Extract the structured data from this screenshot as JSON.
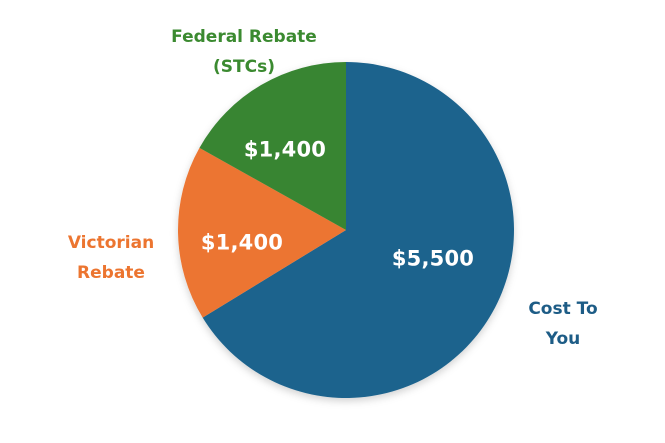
{
  "chart_data": {
    "type": "pie",
    "title": "",
    "categories": [
      "Cost To You",
      "Victorian Rebate",
      "Federal Rebate (STCs)"
    ],
    "values": [
      5500,
      1400,
      1400
    ],
    "value_labels": [
      "$5,500",
      "$1,400",
      "$1,400"
    ],
    "colors": [
      "#1D638D",
      "#EC7530",
      "#388532"
    ],
    "start_angle": "12 o'clock",
    "direction": "clockwise",
    "legend": "none (direct outer labels)"
  },
  "slices": {
    "cost": {
      "value_label": "$5,500",
      "label_line1": "Cost To",
      "label_line2": "You",
      "color": "#1D638D",
      "label_color": "#1D5C86"
    },
    "victorian": {
      "value_label": "$1,400",
      "label_line1": "Victorian",
      "label_line2": "Rebate",
      "color": "#EC7530",
      "label_color": "#EC7530"
    },
    "federal": {
      "value_label": "$1,400",
      "label_line1": "Federal Rebate",
      "label_line2": "(STCs)",
      "color": "#388532",
      "label_color": "#3B8A30"
    }
  }
}
